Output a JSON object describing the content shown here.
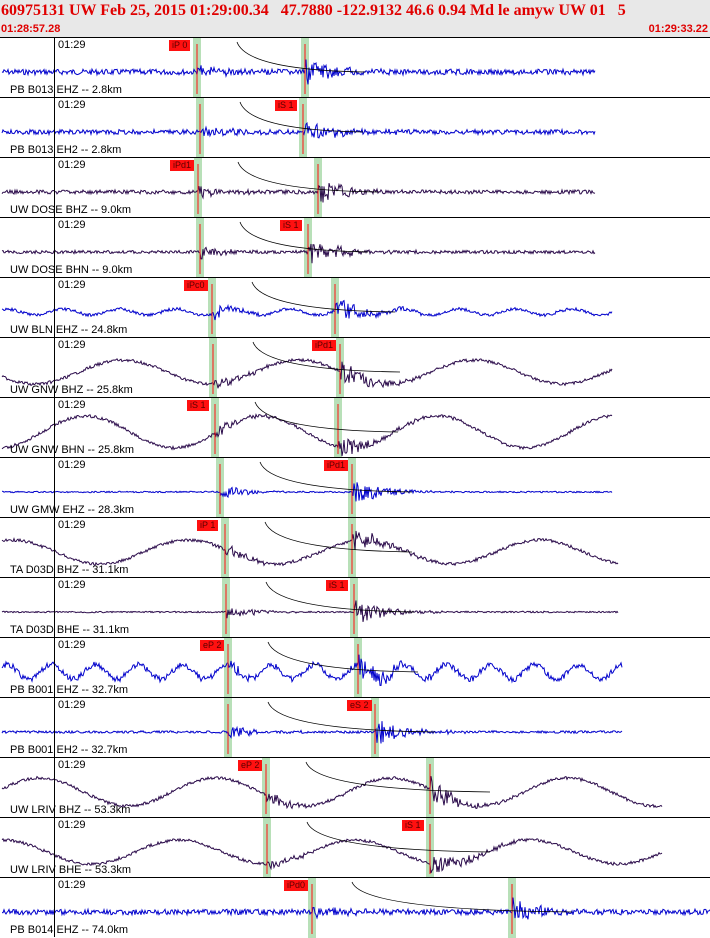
{
  "header": {
    "title": "60975131 UW Feb 25, 2015 01:29:00.34   47.7880 -122.9132 46.6 0.94 Md le amyw UW 01   5",
    "start_time": "01:28:57.28",
    "end_time": "01:29:33.22"
  },
  "colors": {
    "header_bg": "#e8e8e8",
    "header_text": "#e00000",
    "trace_blue": "#0000cc",
    "trace_dark": "#2a0a4a",
    "pick_marker": "#ff1010",
    "window_band": "#b8e0b8"
  },
  "traces": [
    {
      "station": "PB B013 EHZ -- 2.8km",
      "time": "01:29",
      "phase": "iP 0",
      "style": "blue",
      "amp": 7,
      "type": "noise",
      "onset": 197,
      "s": 305,
      "end": 595
    },
    {
      "station": "PB B013 EH2 -- 2.8km",
      "time": "01:29",
      "phase": "iS 1",
      "style": "blue",
      "amp": 6,
      "type": "noise",
      "onset": 200,
      "s": 303,
      "end": 595
    },
    {
      "station": "UW DOSE BHZ -- 9.0km",
      "time": "01:29",
      "phase": "iPd1",
      "style": "dark",
      "amp": 5,
      "type": "noise",
      "onset": 198,
      "s": 318,
      "end": 595
    },
    {
      "station": "UW DOSE BHN -- 9.0km",
      "time": "01:29",
      "phase": "iS 1",
      "style": "dark",
      "amp": 4,
      "type": "noise",
      "onset": 200,
      "s": 308,
      "end": 595
    },
    {
      "station": "UW BLN EHZ -- 24.8km",
      "time": "01:29",
      "phase": "iPc0",
      "style": "blue",
      "amp": 5,
      "type": "wavy",
      "onset": 212,
      "s": 335,
      "end": 612
    },
    {
      "station": "UW GNW BHZ -- 25.8km",
      "time": "01:29",
      "phase": "iPd1",
      "style": "dark",
      "amp": 12,
      "type": "slow",
      "onset": 213,
      "s": 340,
      "end": 612
    },
    {
      "station": "UW GNW BHN -- 25.8km",
      "time": "01:29",
      "phase": "iS 1",
      "style": "dark",
      "amp": 16,
      "type": "slow",
      "onset": 215,
      "s": 338,
      "end": 612
    },
    {
      "station": "UW GMW EHZ -- 28.3km",
      "time": "01:29",
      "phase": "iPd1",
      "style": "blue",
      "amp": 1,
      "type": "flat",
      "onset": 220,
      "s": 352,
      "end": 612
    },
    {
      "station": "TA D03D BHZ -- 31.1km",
      "time": "01:29",
      "phase": "iP 1",
      "style": "dark",
      "amp": 12,
      "type": "slow",
      "onset": 225,
      "s": 352,
      "end": 618
    },
    {
      "station": "TA D03D BHE -- 31.1km",
      "time": "01:29",
      "phase": "iS 1",
      "style": "dark",
      "amp": 2,
      "type": "flat",
      "onset": 226,
      "s": 354,
      "end": 618
    },
    {
      "station": "PB B001 EHZ -- 32.7km",
      "time": "01:29",
      "phase": "eP 2",
      "style": "blue",
      "amp": 12,
      "type": "noisy2",
      "onset": 228,
      "s": 358,
      "end": 622
    },
    {
      "station": "PB B001 EH2 -- 32.7km",
      "time": "01:29",
      "phase": "eS 2",
      "style": "blue",
      "amp": 3,
      "type": "noise",
      "onset": 228,
      "s": 375,
      "end": 622
    },
    {
      "station": "UW LRIV BHZ -- 53.3km",
      "time": "01:29",
      "phase": "eP 2",
      "style": "dark",
      "amp": 14,
      "type": "slow",
      "onset": 266,
      "s": 430,
      "end": 662
    },
    {
      "station": "UW LRIV BHE -- 53.3km",
      "time": "01:29",
      "phase": "iS 1",
      "style": "dark",
      "amp": 12,
      "type": "slow",
      "onset": 267,
      "s": 430,
      "end": 662
    },
    {
      "station": "PB B014 EHZ -- 74.0km",
      "time": "01:29",
      "phase": "iPd0",
      "style": "blue",
      "amp": 7,
      "type": "noise",
      "onset": 312,
      "s": 512,
      "end": 710
    }
  ]
}
